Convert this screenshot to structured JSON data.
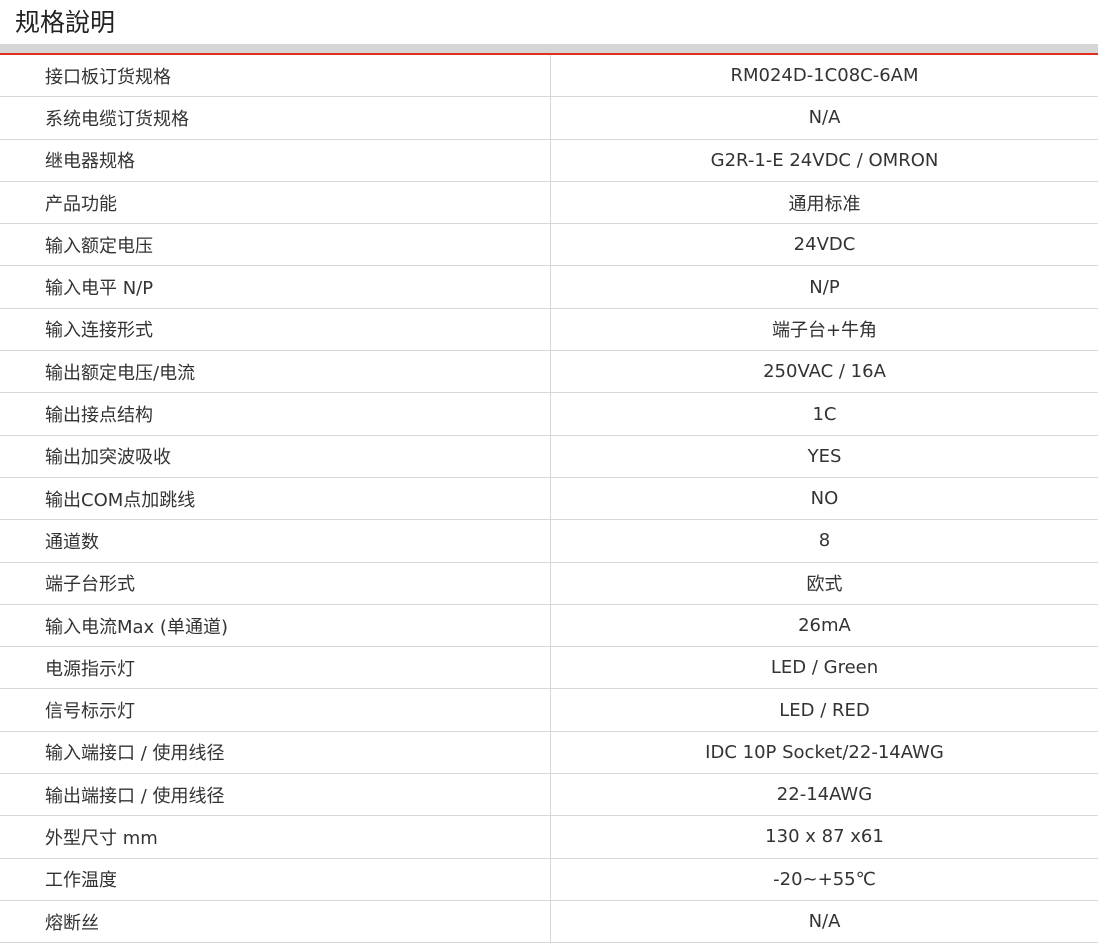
{
  "title": "规格說明",
  "accent_color": "#e0301e",
  "rows": [
    {
      "label": "接口板订货规格",
      "value": "RM024D-1C08C-6AM"
    },
    {
      "label": "系统电缆订货规格",
      "value": "N/A"
    },
    {
      "label": "继电器规格",
      "value": "G2R-1-E 24VDC / OMRON"
    },
    {
      "label": "产品功能",
      "value": "通用标准"
    },
    {
      "label": "输入额定电压",
      "value": "24VDC"
    },
    {
      "label": "输入电平 N/P",
      "value": "N/P"
    },
    {
      "label": "输入连接形式",
      "value": "端子台+牛角"
    },
    {
      "label": "输出额定电压/电流",
      "value": "250VAC / 16A"
    },
    {
      "label": "输出接点结构",
      "value": "1C"
    },
    {
      "label": "输出加突波吸收",
      "value": "YES"
    },
    {
      "label": "输出COM点加跳线",
      "value": "NO"
    },
    {
      "label": "通道数",
      "value": "8"
    },
    {
      "label": "端子台形式",
      "value": "欧式"
    },
    {
      "label": "输入电流Max (单通道)",
      "value": "26mA"
    },
    {
      "label": "电源指示灯",
      "value": "LED / Green"
    },
    {
      "label": "信号标示灯",
      "value": "LED / RED"
    },
    {
      "label": "输入端接口 / 使用线径",
      "value": "IDC 10P Socket/22-14AWG"
    },
    {
      "label": "输出端接口 / 使用线径",
      "value": "22-14AWG"
    },
    {
      "label": "外型尺寸 mm",
      "value": "130 x 87 x61"
    },
    {
      "label": "工作温度",
      "value": "-20~+55℃"
    },
    {
      "label": "熔断丝",
      "value": "N/A"
    }
  ]
}
